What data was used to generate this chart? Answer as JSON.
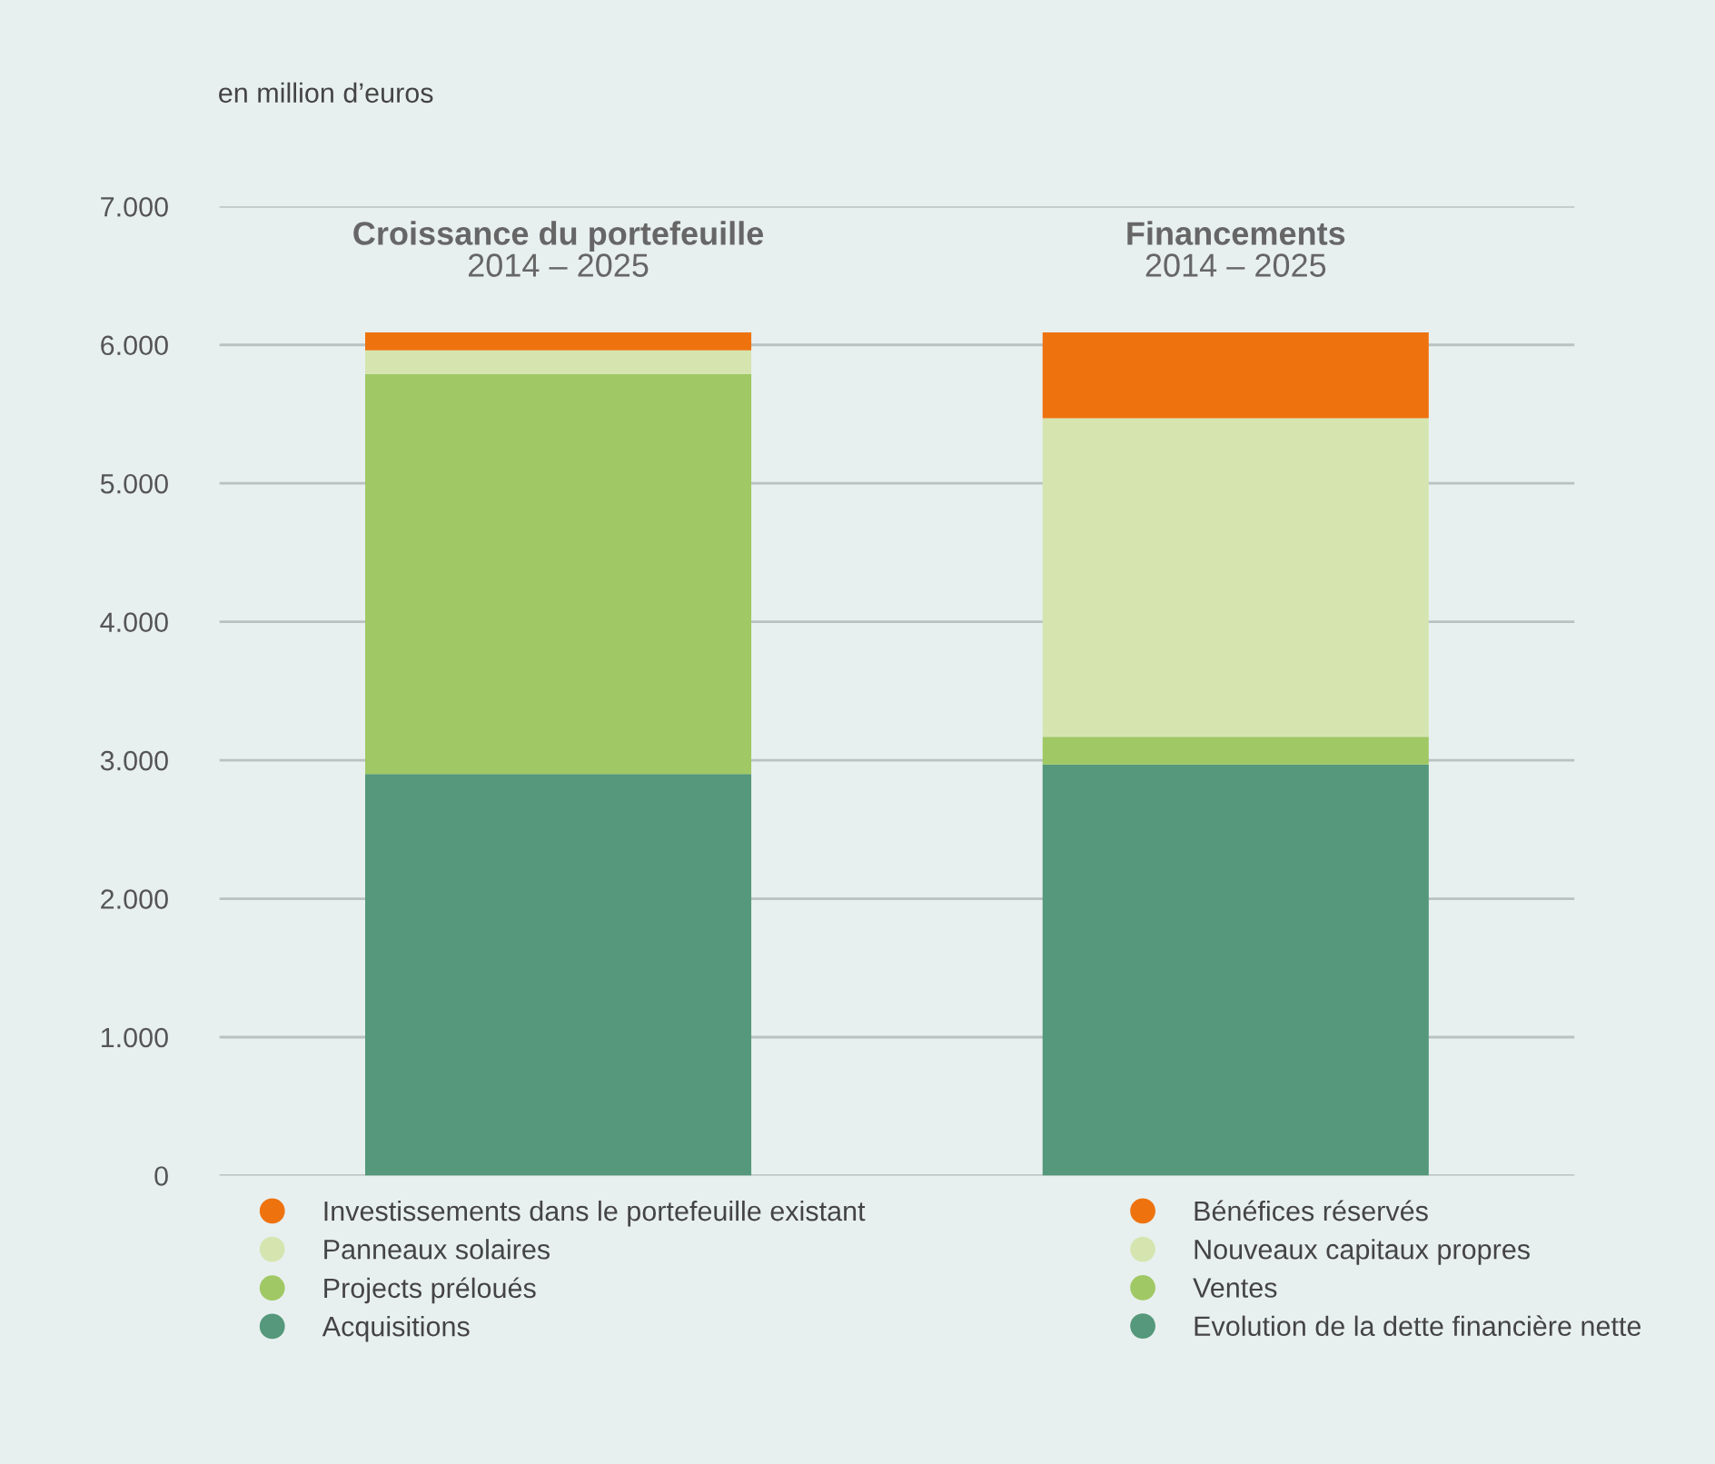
{
  "chart_data": {
    "type": "bar",
    "stacked": true,
    "ylabel": "en million d’euros",
    "categories": [
      "Croissance du portefeuille\n2014 – 2025",
      "Financements\n2014 – 2025"
    ],
    "series": [
      {
        "name": "Acquisitions",
        "color": "#55987b",
        "values": [
          2900,
          null
        ]
      },
      {
        "name": "Projects préloués",
        "color": "#a0c864",
        "values": [
          2890,
          null
        ]
      },
      {
        "name": "Panneaux solaires",
        "color": "#d6e5b0",
        "values": [
          170,
          null
        ]
      },
      {
        "name": "Investissements dans le portefeuille existant",
        "color": "#ee730f",
        "values": [
          130,
          null
        ]
      },
      {
        "name": "Evolution de la dette financière nette",
        "color": "#55987b",
        "values": [
          null,
          2970
        ]
      },
      {
        "name": "Ventes",
        "color": "#a0c864",
        "values": [
          null,
          200
        ]
      },
      {
        "name": "Nouveaux capitaux propres",
        "color": "#d6e5b0",
        "values": [
          null,
          2300
        ]
      },
      {
        "name": "Bénéfices réservés",
        "color": "#ee730f",
        "values": [
          null,
          620
        ]
      }
    ],
    "ylim": [
      0,
      7000
    ],
    "yticks": [
      {
        "value": 0,
        "label": "0"
      },
      {
        "value": 1000,
        "label": "1.000"
      },
      {
        "value": 2000,
        "label": "2.000"
      },
      {
        "value": 3000,
        "label": "3.000"
      },
      {
        "value": 4000,
        "label": "4.000"
      },
      {
        "value": 5000,
        "label": "5.000"
      },
      {
        "value": 6000,
        "label": "6.000"
      },
      {
        "value": 7000,
        "label": "7.000"
      }
    ],
    "grid": "y",
    "legend": "bottom"
  }
}
